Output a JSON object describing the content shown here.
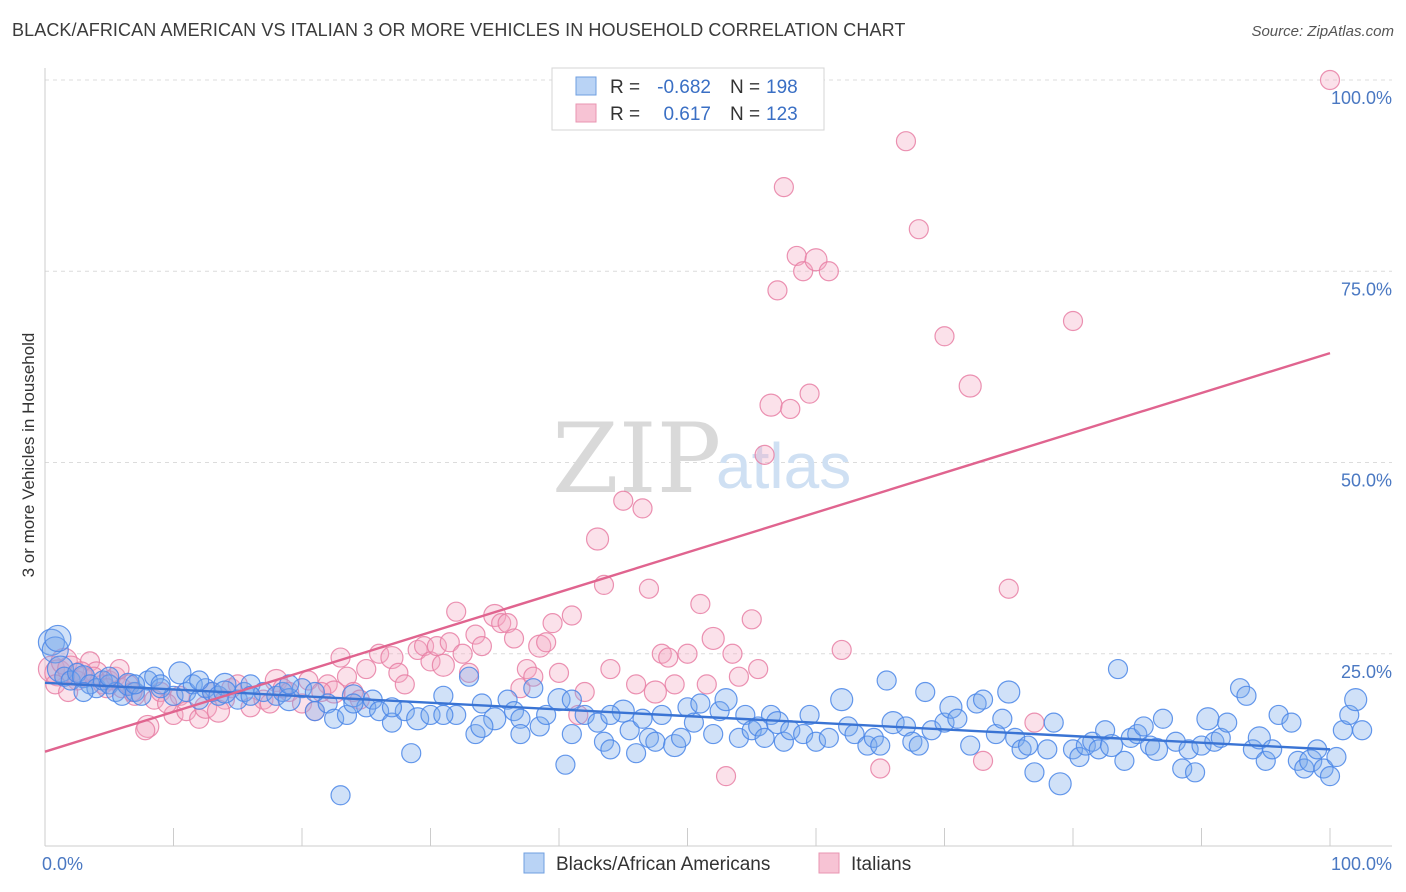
{
  "header": {
    "title": "BLACK/AFRICAN AMERICAN VS ITALIAN 3 OR MORE VEHICLES IN HOUSEHOLD CORRELATION CHART",
    "source": "Source: ZipAtlas.com"
  },
  "watermark": {
    "zip": "ZIP",
    "atlas": "atlas"
  },
  "legend": {
    "r_label": "R =",
    "n_label": "N =",
    "rows": [
      {
        "r": "-0.682",
        "n": "198"
      },
      {
        "r": "0.617",
        "n": "123"
      }
    ]
  },
  "chart_data": {
    "type": "scatter",
    "ylabel": "3 or more Vehicles in Household",
    "xlim": [
      0,
      100
    ],
    "ylim": [
      0,
      100
    ],
    "x_tick_labels": [
      "0.0%",
      "100.0%"
    ],
    "y_ticks": [
      25,
      50,
      75,
      100
    ],
    "y_tick_labels": [
      "25.0%",
      "50.0%",
      "75.0%",
      "100.0%"
    ],
    "grid": true,
    "colors": {
      "blue": "#4a86e8",
      "blue_line": "#3a74d4",
      "pink": "#ec7fa4",
      "pink_line": "#e0648f"
    },
    "series": [
      {
        "name": "Blacks/African Americans",
        "trend": {
          "x0": 0,
          "y0": 21.2,
          "x1": 100,
          "y1": 12.5
        },
        "points": [
          [
            0.5,
            26.5
          ],
          [
            0.8,
            25.5
          ],
          [
            1,
            27
          ],
          [
            1.2,
            23
          ],
          [
            1.5,
            22
          ],
          [
            2,
            21.5
          ],
          [
            2.5,
            22.5
          ],
          [
            3,
            22
          ],
          [
            3.5,
            21
          ],
          [
            4,
            20.5
          ],
          [
            4.5,
            21.5
          ],
          [
            5,
            21
          ],
          [
            5.5,
            20
          ],
          [
            6,
            19.5
          ],
          [
            6.5,
            21
          ],
          [
            7,
            20
          ],
          [
            7.5,
            19.5
          ],
          [
            8,
            21.5
          ],
          [
            8.5,
            22
          ],
          [
            9,
            20.5
          ],
          [
            10,
            19.5
          ],
          [
            10.5,
            22.5
          ],
          [
            11,
            20
          ],
          [
            11.5,
            21
          ],
          [
            12,
            19
          ],
          [
            12.5,
            20.5
          ],
          [
            13,
            20
          ],
          [
            13.5,
            19.5
          ],
          [
            14,
            21
          ],
          [
            15,
            19
          ],
          [
            15.5,
            20
          ],
          [
            16,
            21
          ],
          [
            17,
            20
          ],
          [
            18,
            19.5
          ],
          [
            18.5,
            20
          ],
          [
            19,
            19
          ],
          [
            20,
            20.5
          ],
          [
            21,
            17.5
          ],
          [
            22,
            18.5
          ],
          [
            22.5,
            16.5
          ],
          [
            23,
            6.5
          ],
          [
            23.5,
            17
          ],
          [
            24,
            19.5
          ],
          [
            25,
            18
          ],
          [
            25.5,
            19
          ],
          [
            26,
            17.5
          ],
          [
            27,
            16
          ],
          [
            28,
            17.5
          ],
          [
            28.5,
            12
          ],
          [
            29,
            16.5
          ],
          [
            30,
            17
          ],
          [
            31,
            19.5
          ],
          [
            32,
            17
          ],
          [
            33,
            22
          ],
          [
            33.5,
            14.5
          ],
          [
            34,
            18.5
          ],
          [
            35,
            16.5
          ],
          [
            36,
            19
          ],
          [
            36.5,
            17.5
          ],
          [
            37,
            16.5
          ],
          [
            38,
            20.5
          ],
          [
            38.5,
            15.5
          ],
          [
            39,
            17
          ],
          [
            40,
            19
          ],
          [
            40.5,
            10.5
          ],
          [
            41,
            19
          ],
          [
            42,
            17
          ],
          [
            43,
            16
          ],
          [
            43.5,
            13.5
          ],
          [
            44,
            12.5
          ],
          [
            45,
            17.5
          ],
          [
            45.5,
            15
          ],
          [
            46,
            12
          ],
          [
            46.5,
            16.5
          ],
          [
            47,
            14
          ],
          [
            47.5,
            13.5
          ],
          [
            48,
            17
          ],
          [
            49,
            13
          ],
          [
            49.5,
            14
          ],
          [
            50,
            18
          ],
          [
            50.5,
            16
          ],
          [
            51,
            18.5
          ],
          [
            52,
            14.5
          ],
          [
            52.5,
            17.5
          ],
          [
            53,
            19
          ],
          [
            54,
            14
          ],
          [
            54.5,
            17
          ],
          [
            55,
            15
          ],
          [
            55.5,
            15.5
          ],
          [
            56,
            14
          ],
          [
            56.5,
            17
          ],
          [
            57,
            16
          ],
          [
            57.5,
            13.5
          ],
          [
            58,
            15
          ],
          [
            59,
            14.5
          ],
          [
            59.5,
            17
          ],
          [
            60,
            13.5
          ],
          [
            61,
            14
          ],
          [
            62,
            19
          ],
          [
            62.5,
            15.5
          ],
          [
            63,
            14.5
          ],
          [
            64,
            13
          ],
          [
            64.5,
            14
          ],
          [
            65,
            13
          ],
          [
            65.5,
            21.5
          ],
          [
            66,
            16
          ],
          [
            67,
            15.5
          ],
          [
            67.5,
            13.5
          ],
          [
            68,
            13
          ],
          [
            68.5,
            20
          ],
          [
            69,
            15
          ],
          [
            70,
            16
          ],
          [
            70.5,
            18
          ],
          [
            71,
            16.5
          ],
          [
            72,
            13
          ],
          [
            72.5,
            18.5
          ],
          [
            73,
            19
          ],
          [
            74,
            14.5
          ],
          [
            74.5,
            16.5
          ],
          [
            75,
            20
          ],
          [
            75.5,
            14
          ],
          [
            76,
            12.5
          ],
          [
            76.5,
            13
          ],
          [
            77,
            9.5
          ],
          [
            78,
            12.5
          ],
          [
            78.5,
            16
          ],
          [
            79,
            8
          ],
          [
            80,
            12.5
          ],
          [
            80.5,
            11.5
          ],
          [
            81,
            13
          ],
          [
            81.5,
            13.5
          ],
          [
            82,
            12.5
          ],
          [
            82.5,
            15
          ],
          [
            83,
            13
          ],
          [
            83.5,
            23
          ],
          [
            84,
            11
          ],
          [
            84.5,
            14
          ],
          [
            85,
            14.5
          ],
          [
            85.5,
            15.5
          ],
          [
            86,
            13
          ],
          [
            86.5,
            12.5
          ],
          [
            87,
            16.5
          ],
          [
            88,
            13.5
          ],
          [
            88.5,
            10
          ],
          [
            89,
            12.5
          ],
          [
            89.5,
            9.5
          ],
          [
            90,
            13
          ],
          [
            90.5,
            16.5
          ],
          [
            91,
            13.5
          ],
          [
            91.5,
            14
          ],
          [
            92,
            16
          ],
          [
            93,
            20.5
          ],
          [
            93.5,
            19.5
          ],
          [
            94,
            12.5
          ],
          [
            94.5,
            14
          ],
          [
            95,
            11
          ],
          [
            95.5,
            12.5
          ],
          [
            96,
            17
          ],
          [
            97,
            16
          ],
          [
            97.5,
            11
          ],
          [
            98,
            10
          ],
          [
            98.5,
            11
          ],
          [
            99,
            12.5
          ],
          [
            99.5,
            10
          ],
          [
            100,
            9
          ],
          [
            100.5,
            11.5
          ],
          [
            101,
            15
          ],
          [
            101.5,
            17
          ],
          [
            102,
            19
          ],
          [
            102.5,
            15
          ],
          [
            3,
            20
          ],
          [
            5,
            22
          ],
          [
            7,
            21
          ],
          [
            9,
            21
          ],
          [
            12,
            21.5
          ],
          [
            14,
            20
          ],
          [
            16,
            19.5
          ],
          [
            19,
            21
          ],
          [
            21,
            20
          ],
          [
            24,
            18.5
          ],
          [
            27,
            18
          ],
          [
            31,
            17
          ],
          [
            34,
            15.5
          ],
          [
            37,
            14.5
          ],
          [
            41,
            14.5
          ],
          [
            44,
            17
          ]
        ]
      },
      {
        "name": "Italians",
        "trend": {
          "x0": 0,
          "y0": 12.2,
          "x1": 100,
          "y1": 64.3
        },
        "points": [
          [
            0.5,
            23
          ],
          [
            1,
            22.5
          ],
          [
            1.5,
            24
          ],
          [
            2,
            23
          ],
          [
            2.5,
            21.5
          ],
          [
            3,
            22
          ],
          [
            3.5,
            24
          ],
          [
            4,
            22.5
          ],
          [
            4.5,
            21
          ],
          [
            5,
            21.5
          ],
          [
            5.5,
            22
          ],
          [
            6,
            20.5
          ],
          [
            6.5,
            21
          ],
          [
            7,
            19.5
          ],
          [
            8,
            15.5
          ],
          [
            8.5,
            19
          ],
          [
            9,
            20
          ],
          [
            10,
            17
          ],
          [
            10.5,
            19.5
          ],
          [
            11,
            17.5
          ],
          [
            12,
            16.5
          ],
          [
            12.5,
            18
          ],
          [
            13,
            20
          ],
          [
            14,
            19
          ],
          [
            14.5,
            20.5
          ],
          [
            15,
            21
          ],
          [
            16,
            18
          ],
          [
            17,
            19
          ],
          [
            18,
            21.5
          ],
          [
            18.5,
            20.5
          ],
          [
            19,
            20
          ],
          [
            20,
            18.5
          ],
          [
            20.5,
            21.5
          ],
          [
            21,
            17.5
          ],
          [
            22,
            21
          ],
          [
            22.5,
            20
          ],
          [
            23,
            24.5
          ],
          [
            23.5,
            22
          ],
          [
            24,
            20
          ],
          [
            24.5,
            19
          ],
          [
            25,
            23
          ],
          [
            26,
            25
          ],
          [
            27,
            24.5
          ],
          [
            27.5,
            22.5
          ],
          [
            28,
            21
          ],
          [
            29,
            25.5
          ],
          [
            29.5,
            26
          ],
          [
            30,
            24
          ],
          [
            30.5,
            26
          ],
          [
            31,
            23.5
          ],
          [
            31.5,
            26.5
          ],
          [
            32,
            30.5
          ],
          [
            32.5,
            25
          ],
          [
            33,
            22.5
          ],
          [
            33.5,
            27.5
          ],
          [
            34,
            26
          ],
          [
            35,
            30
          ],
          [
            35.5,
            29
          ],
          [
            36,
            29
          ],
          [
            36.5,
            27
          ],
          [
            37,
            20.5
          ],
          [
            37.5,
            23
          ],
          [
            38,
            22
          ],
          [
            38.5,
            26
          ],
          [
            39,
            26.5
          ],
          [
            39.5,
            29
          ],
          [
            40,
            22.5
          ],
          [
            41,
            30
          ],
          [
            41.5,
            17
          ],
          [
            42,
            20
          ],
          [
            43,
            40
          ],
          [
            43.5,
            34
          ],
          [
            44,
            23
          ],
          [
            45,
            45
          ],
          [
            46,
            21
          ],
          [
            46.5,
            44
          ],
          [
            47,
            33.5
          ],
          [
            47.5,
            20
          ],
          [
            48,
            25
          ],
          [
            48.5,
            24.5
          ],
          [
            49,
            21
          ],
          [
            50,
            25
          ],
          [
            51,
            31.5
          ],
          [
            51.5,
            21
          ],
          [
            52,
            27
          ],
          [
            53,
            9
          ],
          [
            53.5,
            25
          ],
          [
            54,
            22
          ],
          [
            55,
            29.5
          ],
          [
            55.5,
            23
          ],
          [
            56,
            51
          ],
          [
            56.5,
            57.5
          ],
          [
            57,
            72.5
          ],
          [
            57.5,
            86
          ],
          [
            58,
            57
          ],
          [
            58.5,
            77
          ],
          [
            59,
            75
          ],
          [
            59.5,
            59
          ],
          [
            60,
            76.5
          ],
          [
            61,
            75
          ],
          [
            62,
            25.5
          ],
          [
            65,
            10
          ],
          [
            67,
            92
          ],
          [
            68,
            80.5
          ],
          [
            70,
            66.5
          ],
          [
            72,
            60
          ],
          [
            73,
            11
          ],
          [
            75,
            33.5
          ],
          [
            77,
            16
          ],
          [
            80,
            68.5
          ],
          [
            0.8,
            21
          ],
          [
            1.8,
            20
          ],
          [
            2.8,
            22.5
          ],
          [
            3.8,
            22
          ],
          [
            4.8,
            20.5
          ],
          [
            5.8,
            23
          ],
          [
            6.8,
            20
          ],
          [
            7.8,
            15
          ],
          [
            9.5,
            18.5
          ],
          [
            13.5,
            17.5
          ],
          [
            17.5,
            18.5
          ],
          [
            21.5,
            20
          ],
          [
            100,
            100
          ]
        ]
      }
    ]
  },
  "bottom_legend": {
    "items": [
      {
        "label": "Blacks/African Americans"
      },
      {
        "label": "Italians"
      }
    ]
  }
}
